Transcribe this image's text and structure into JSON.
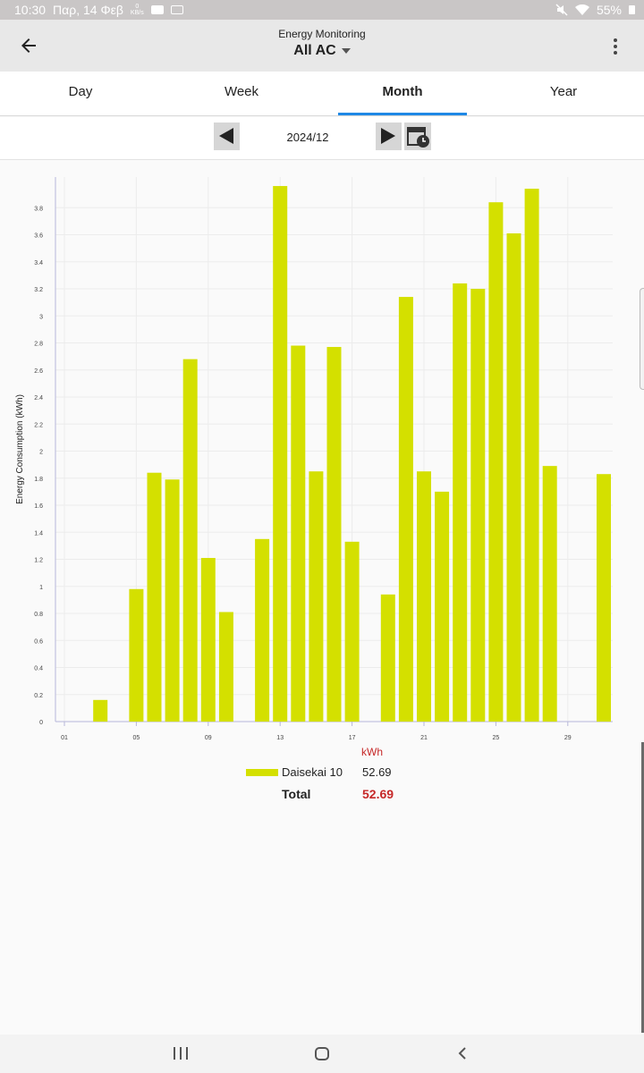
{
  "status_bar": {
    "time": "10:30",
    "date": "Παρ, 14 Φεβ",
    "net_speed_value": "0",
    "net_speed_unit": "KB/s",
    "battery": "55%"
  },
  "app_bar": {
    "subtitle": "Energy Monitoring",
    "title": "All AC",
    "back_icon": "arrow-left-icon",
    "menu_icon": "more-vert-icon"
  },
  "tabs": [
    {
      "label": "Day",
      "active": false
    },
    {
      "label": "Week",
      "active": false
    },
    {
      "label": "Month",
      "active": true
    },
    {
      "label": "Year",
      "active": false
    }
  ],
  "accent_color": "#1f88e5",
  "date_nav": {
    "date": "2024/12",
    "prev_icon": "triangle-left-icon",
    "next_icon": "triangle-right-icon",
    "calendar_icon": "calendar-clock-icon"
  },
  "chart_data": {
    "type": "bar",
    "ylabel": "Energy Consumption (kWh)",
    "xlabel": "",
    "ylim": [
      0,
      4.0
    ],
    "yticks": [
      "0",
      "0.2",
      "0.4",
      "0.6",
      "0.8",
      "1",
      "1.2",
      "1.4",
      "1.6",
      "1.8",
      "2",
      "2.2",
      "2.4",
      "2.6",
      "2.8",
      "3",
      "3.2",
      "3.4",
      "3.6",
      "3.8"
    ],
    "xticks": [
      "01",
      "05",
      "09",
      "13",
      "17",
      "21",
      "25",
      "29"
    ],
    "categories": [
      "01",
      "02",
      "03",
      "04",
      "05",
      "06",
      "07",
      "08",
      "09",
      "10",
      "11",
      "12",
      "13",
      "14",
      "15",
      "16",
      "17",
      "18",
      "19",
      "20",
      "21",
      "22",
      "23",
      "24",
      "25",
      "26",
      "27",
      "28",
      "29",
      "30",
      "31"
    ],
    "series": [
      {
        "name": "Daisekai 10",
        "color": "#d4e000",
        "values": [
          0,
          0,
          0.16,
          0,
          0.98,
          1.84,
          1.79,
          2.68,
          1.21,
          0.81,
          0,
          1.35,
          3.96,
          2.78,
          1.85,
          2.77,
          1.33,
          0,
          0.94,
          3.14,
          1.85,
          1.7,
          3.24,
          3.2,
          3.84,
          3.61,
          3.94,
          1.89,
          0,
          0,
          1.83
        ]
      }
    ],
    "grid": true
  },
  "legend": {
    "unit": "kWh",
    "items": [
      {
        "name": "Daisekai 10",
        "value": "52.69"
      }
    ],
    "total_label": "Total",
    "total_value": "52.69"
  },
  "system_nav": {
    "recent_icon": "recent-apps-icon",
    "home_icon": "home-icon",
    "back_icon": "back-chevron-icon"
  }
}
